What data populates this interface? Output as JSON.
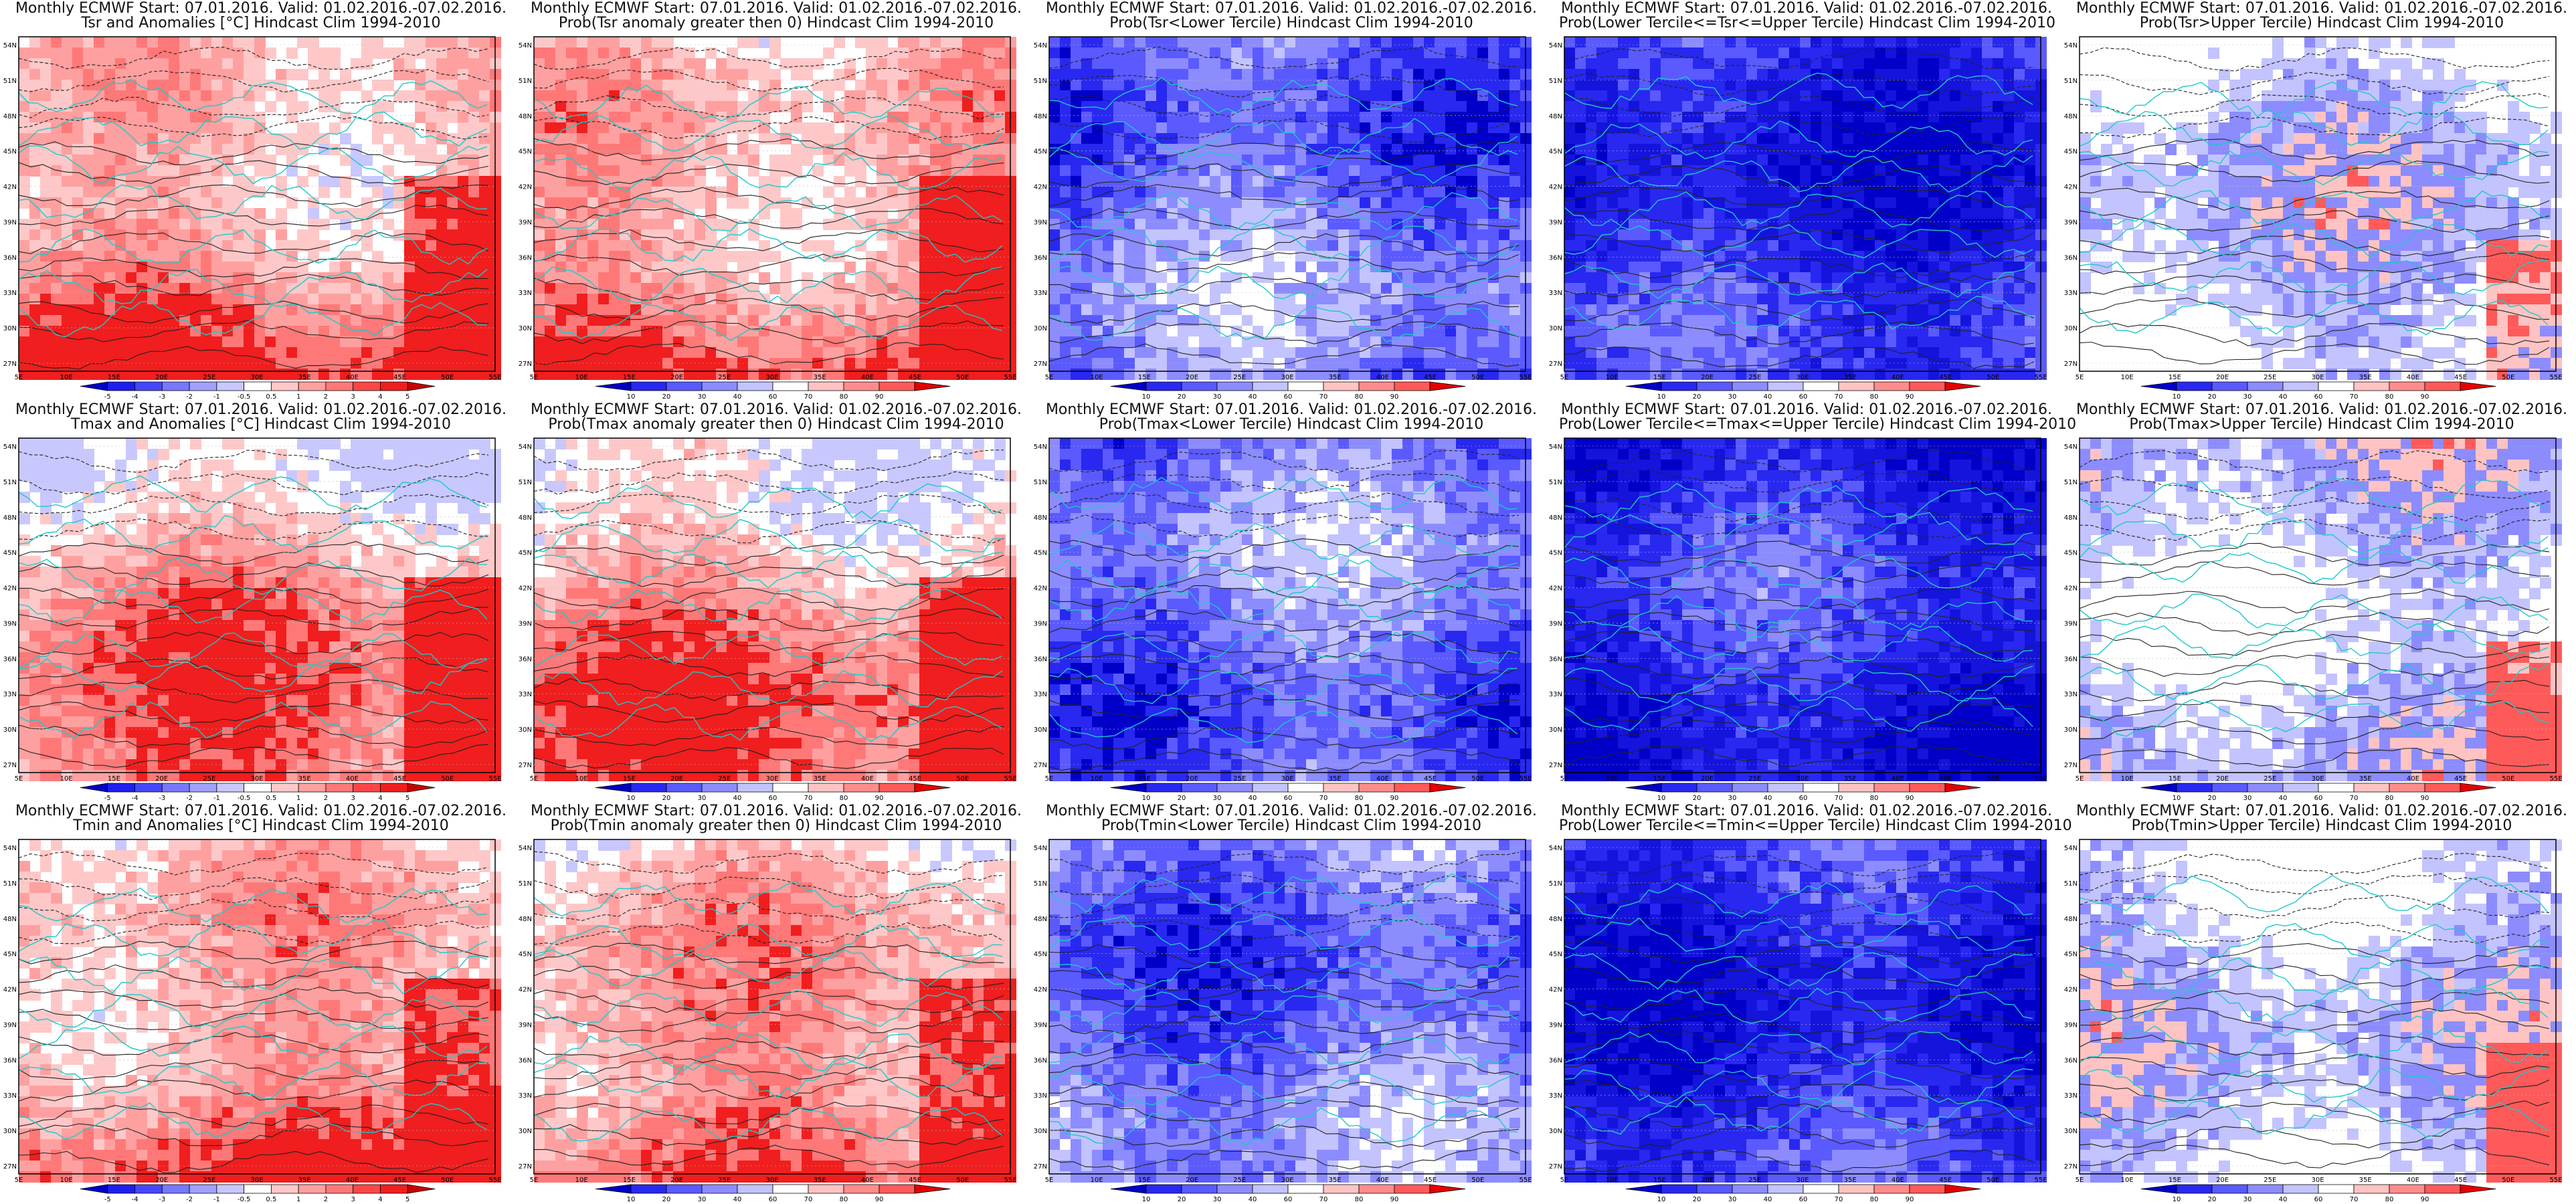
{
  "figure": {
    "common_title_line": "Monthly ECMWF Start: 07.01.2016. Valid: 01.02.2016.-07.02.2016.",
    "lat_labels": [
      "54N",
      "51N",
      "48N",
      "45N",
      "42N",
      "39N",
      "36N",
      "33N",
      "30N",
      "27N"
    ],
    "lon_labels": [
      "5E",
      "10E",
      "15E",
      "20E",
      "25E",
      "30E",
      "35E",
      "40E",
      "45E",
      "50E",
      "55E"
    ],
    "colorbars": {
      "anomaly": {
        "labels": [
          "-5",
          "-4",
          "-3",
          "-2",
          "-1",
          "-0.5",
          "0.5",
          "1",
          "2",
          "3",
          "4",
          "5"
        ],
        "colors": [
          "#0000c8",
          "#1e1ef0",
          "#4646ff",
          "#7878ff",
          "#a0a0ff",
          "#c8c8ff",
          "#ffffff",
          "#ffc8c8",
          "#ffa0a0",
          "#ff7878",
          "#ff4646",
          "#f01e1e",
          "#c80000"
        ]
      },
      "probability": {
        "labels": [
          "10",
          "20",
          "30",
          "40",
          "60",
          "70",
          "80",
          "90"
        ],
        "colors": [
          "#0000c8",
          "#2828f0",
          "#5a5aff",
          "#8c8cff",
          "#c3c3ff",
          "#ffffff",
          "#ffc3c3",
          "#ff8c8c",
          "#ff5a5a",
          "#e60000"
        ]
      }
    },
    "panels": [
      {
        "title_line2": "Tsr and Anomalies [°C] Hindcast Clim 1994-2010",
        "type": "anomaly"
      },
      {
        "title_line2": "Prob(Tsr anomaly greater then 0) Hindcast Clim 1994-2010",
        "type": "prob_pos"
      },
      {
        "title_line2": "Prob(Tsr<Lower Tercile) Hindcast Clim 1994-2010",
        "type": "prob_lower"
      },
      {
        "title_line2": "Prob(Lower Tercile<=Tsr<=Upper Tercile) Hindcast Clim 1994-2010",
        "type": "prob_middle"
      },
      {
        "title_line2": "Prob(Tsr>Upper Tercile) Hindcast Clim 1994-2010",
        "type": "prob_upper"
      },
      {
        "title_line2": "Tmax and Anomalies [°C] Hindcast Clim 1994-2010",
        "type": "anomaly"
      },
      {
        "title_line2": "Prob(Tmax anomaly greater then 0) Hindcast Clim 1994-2010",
        "type": "prob_pos"
      },
      {
        "title_line2": "Prob(Tmax<Lower Tercile) Hindcast Clim 1994-2010",
        "type": "prob_lower"
      },
      {
        "title_line2": "Prob(Lower Tercile<=Tmax<=Upper Tercile) Hindcast Clim 1994-2010",
        "type": "prob_middle"
      },
      {
        "title_line2": "Prob(Tmax>Upper Tercile) Hindcast Clim 1994-2010",
        "type": "prob_upper"
      },
      {
        "title_line2": "Tmin and Anomalies [°C] Hindcast Clim 1994-2010",
        "type": "anomaly"
      },
      {
        "title_line2": "Prob(Tmin anomaly greater then 0) Hindcast Clim 1994-2010",
        "type": "prob_pos"
      },
      {
        "title_line2": "Prob(Tmin<Lower Tercile) Hindcast Clim 1994-2010",
        "type": "prob_lower"
      },
      {
        "title_line2": "Prob(Lower Tercile<=Tmin<=Upper Tercile) Hindcast Clim 1994-2010",
        "type": "prob_middle"
      },
      {
        "title_line2": "Prob(Tmin>Upper Tercile) Hindcast Clim 1994-2010",
        "type": "prob_upper"
      }
    ]
  }
}
